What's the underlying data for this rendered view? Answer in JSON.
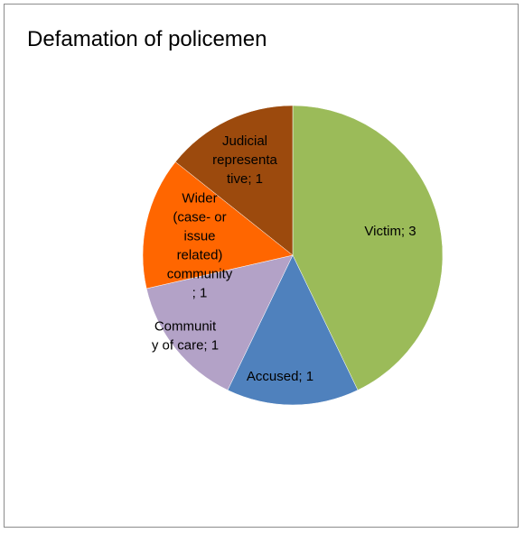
{
  "chart_data": {
    "type": "pie",
    "title": "Defamation of policemen",
    "categories": [
      "Victim",
      "Accused",
      "Community of care",
      "Wider (case- or issue related) community",
      "Judicial representative"
    ],
    "values": [
      3,
      1,
      1,
      1,
      1
    ],
    "colors": [
      "#9BBB59",
      "#4F81BD",
      "#B3A2C7",
      "#FF6600",
      "#9C4A0D"
    ],
    "data_labels": [
      [
        "Victim; 3"
      ],
      [
        "Accused; 1"
      ],
      [
        "Communit",
        "y of care; 1"
      ],
      [
        "Wider",
        "(case- or",
        "issue",
        "related)",
        "community",
        "; 1"
      ],
      [
        "Judicial",
        "representa",
        "tive; 1"
      ]
    ],
    "legend": "none",
    "start_angle_deg": 0,
    "direction": "clockwise"
  }
}
